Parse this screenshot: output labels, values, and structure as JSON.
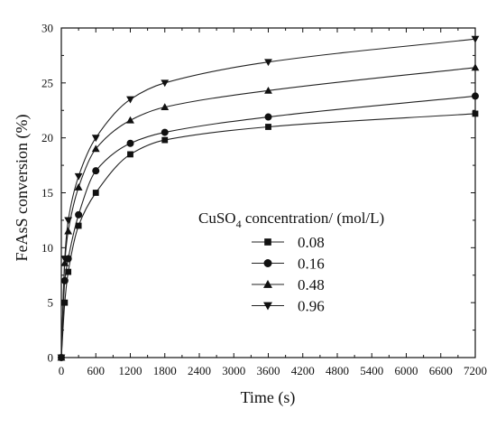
{
  "chart_data": {
    "type": "line",
    "xlabel": "Time (s)",
    "ylabel": "FeAsS conversion (%)",
    "xlim": [
      0,
      7200
    ],
    "ylim": [
      0,
      30
    ],
    "xticks": [
      0,
      600,
      1200,
      1800,
      2400,
      3000,
      3600,
      4200,
      4800,
      5400,
      6000,
      6600,
      7200
    ],
    "yticks": [
      0,
      5,
      10,
      15,
      20,
      25,
      30
    ],
    "legend": {
      "title_prefix": "CuSO",
      "title_subscript": "4",
      "title_suffix": " concentration/ (mol/L)",
      "placement": "center-right"
    },
    "grid": false,
    "series": [
      {
        "name": "0.08",
        "marker": "square",
        "x": [
          0,
          60,
          120,
          300,
          600,
          1200,
          1800,
          3600,
          7200
        ],
        "y": [
          0,
          5,
          7.8,
          12,
          15,
          18.5,
          19.8,
          21,
          22.2
        ]
      },
      {
        "name": "0.16",
        "marker": "circle",
        "x": [
          0,
          60,
          120,
          300,
          600,
          1200,
          1800,
          3600,
          7200
        ],
        "y": [
          0,
          7,
          9,
          13,
          17,
          19.5,
          20.5,
          21.9,
          23.8
        ]
      },
      {
        "name": "0.48",
        "marker": "triangle-up",
        "x": [
          0,
          60,
          120,
          300,
          600,
          1200,
          1800,
          3600,
          7200
        ],
        "y": [
          0,
          8.6,
          11.5,
          15.5,
          19,
          21.6,
          22.8,
          24.3,
          26.4
        ]
      },
      {
        "name": "0.96",
        "marker": "triangle-down",
        "x": [
          0,
          60,
          120,
          300,
          600,
          1200,
          1800,
          3600,
          7200
        ],
        "y": [
          0,
          9,
          12.5,
          16.5,
          20,
          23.5,
          25,
          26.9,
          29
        ]
      }
    ]
  }
}
